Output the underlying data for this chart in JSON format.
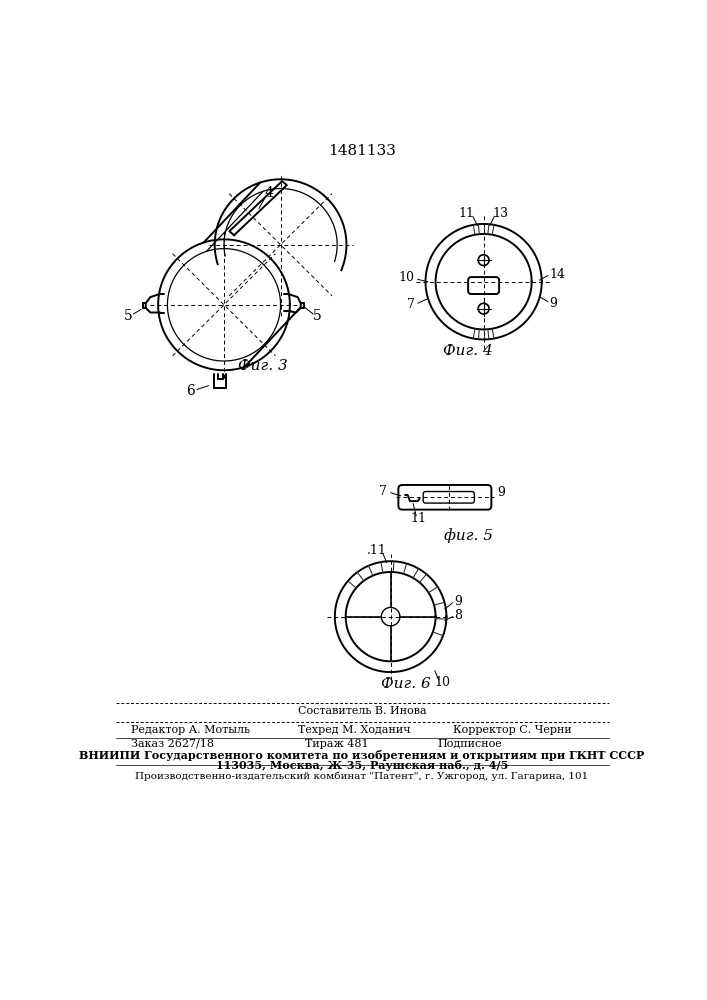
{
  "title": "1481133",
  "background": "#ffffff",
  "line_color": "#000000",
  "fig3_label": "Фиг. 3",
  "fig4_label": "Фиг. 4",
  "fig5_label": "фиг. 5",
  "fig6_label": "Фиг. 6",
  "bottom_line1": "Составитель В. Инова",
  "bottom_line2_left": "Редактор А. Мотыль",
  "bottom_line2_mid": "Техред М. Ходанич",
  "bottom_line2_right": "Корректор С. Черни",
  "bottom_line3_left": "Заказ 2627/18",
  "bottom_line3_mid": "Тираж 481",
  "bottom_line3_right": "Подписное",
  "bottom_line4": "ВНИИПИ Государственного комитета по изобретениям и открытиям при ГКНТ СССР",
  "bottom_line5": "113035, Москва, Ж-35, Раушская наб., д. 4/5",
  "bottom_line6": "Производственно-издательский комбинат \"Патент\", г. Ужгород, ул. Гагарина, 101"
}
